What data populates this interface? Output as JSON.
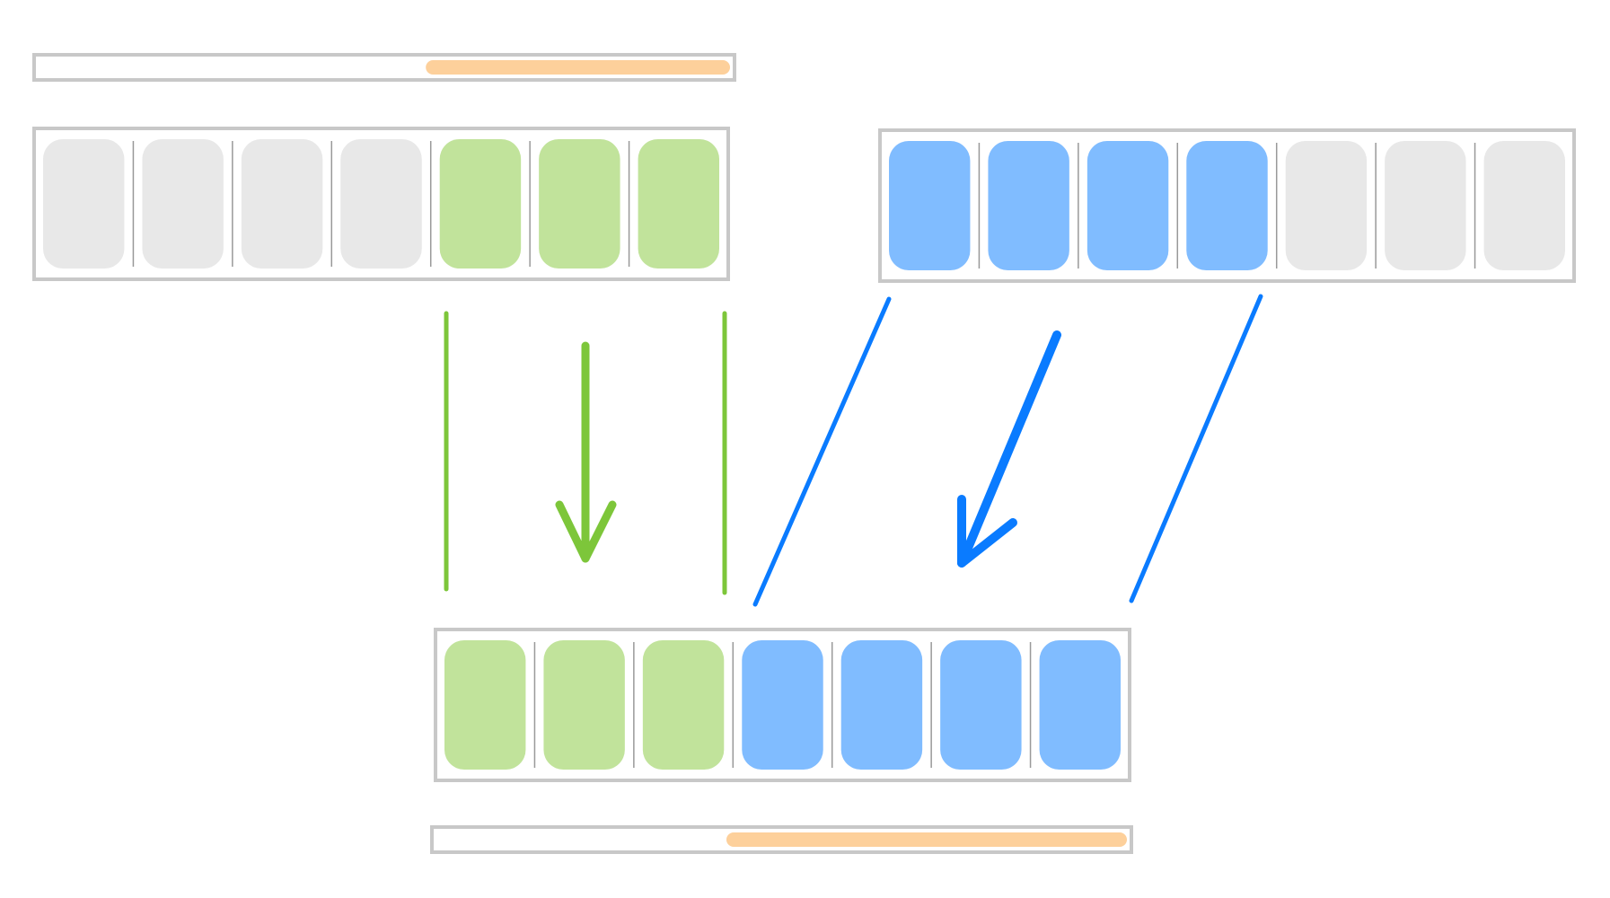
{
  "colors": {
    "frame": "#c8c8c8",
    "divider": "#999999",
    "slot_empty": "#e8e8e8",
    "slot_green": "#c1e39b",
    "slot_blue": "#80bcff",
    "line_green": "#7dc63a",
    "line_blue": "#0a7bff",
    "scrollbar_thumb": "#fdd09b"
  },
  "scrollbars": [
    {
      "name": "top-scrollbar",
      "thumb_start": 0.56,
      "thumb_end": 1.0
    },
    {
      "name": "bottom-scrollbar",
      "thumb_start": 0.42,
      "thumb_end": 1.0
    }
  ],
  "arrays": [
    {
      "name": "source-array-left",
      "slots": [
        "empty",
        "empty",
        "empty",
        "empty",
        "green",
        "green",
        "green"
      ]
    },
    {
      "name": "source-array-right",
      "slots": [
        "blue",
        "blue",
        "blue",
        "blue",
        "empty",
        "empty",
        "empty"
      ]
    },
    {
      "name": "merged-array",
      "slots": [
        "green",
        "green",
        "green",
        "blue",
        "blue",
        "blue",
        "blue"
      ]
    }
  ],
  "connectors": [
    {
      "name": "green-bracket-left",
      "color": "green",
      "kind": "line"
    },
    {
      "name": "green-arrow",
      "color": "green",
      "kind": "arrow"
    },
    {
      "name": "green-bracket-right",
      "color": "green",
      "kind": "line"
    },
    {
      "name": "blue-bracket-left",
      "color": "blue",
      "kind": "line"
    },
    {
      "name": "blue-arrow",
      "color": "blue",
      "kind": "arrow"
    },
    {
      "name": "blue-bracket-right",
      "color": "blue",
      "kind": "line"
    }
  ]
}
